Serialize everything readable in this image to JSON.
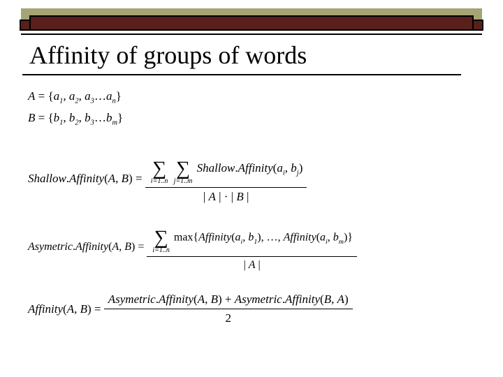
{
  "decor": {
    "olive": "#a6a375",
    "maroon": "#5a1f1a",
    "black": "#000000",
    "background": "#ffffff"
  },
  "title": "Affinity of groups of words",
  "sets": {
    "A_lhs": "A",
    "A_rhs": "= {a1, a2, a3 … an}",
    "B_lhs": "B",
    "B_rhs": "= {b1, b2, b3 … bm}"
  },
  "eq1": {
    "lhs": "Shallow.Affinity(A, B) =",
    "sum_outer_lower": "i=1..n",
    "sum_inner_lower": "j=1..m",
    "inner": "Shallow.Affinity(ai, bj)",
    "den": "| A | · | B |"
  },
  "eq2": {
    "lhs": "Asymetric.Affinity(A, B) =",
    "sum_lower": "i=1..n",
    "inner": "max{ Affinity(ai, b1), …, Affinity(ai, bm) }",
    "den": "| A |"
  },
  "eq3": {
    "lhs": "Affinity(A, B) =",
    "num": "Asymetric.Affinity(A, B) + Asymetric.Affinity(B, A)",
    "den": "2"
  }
}
